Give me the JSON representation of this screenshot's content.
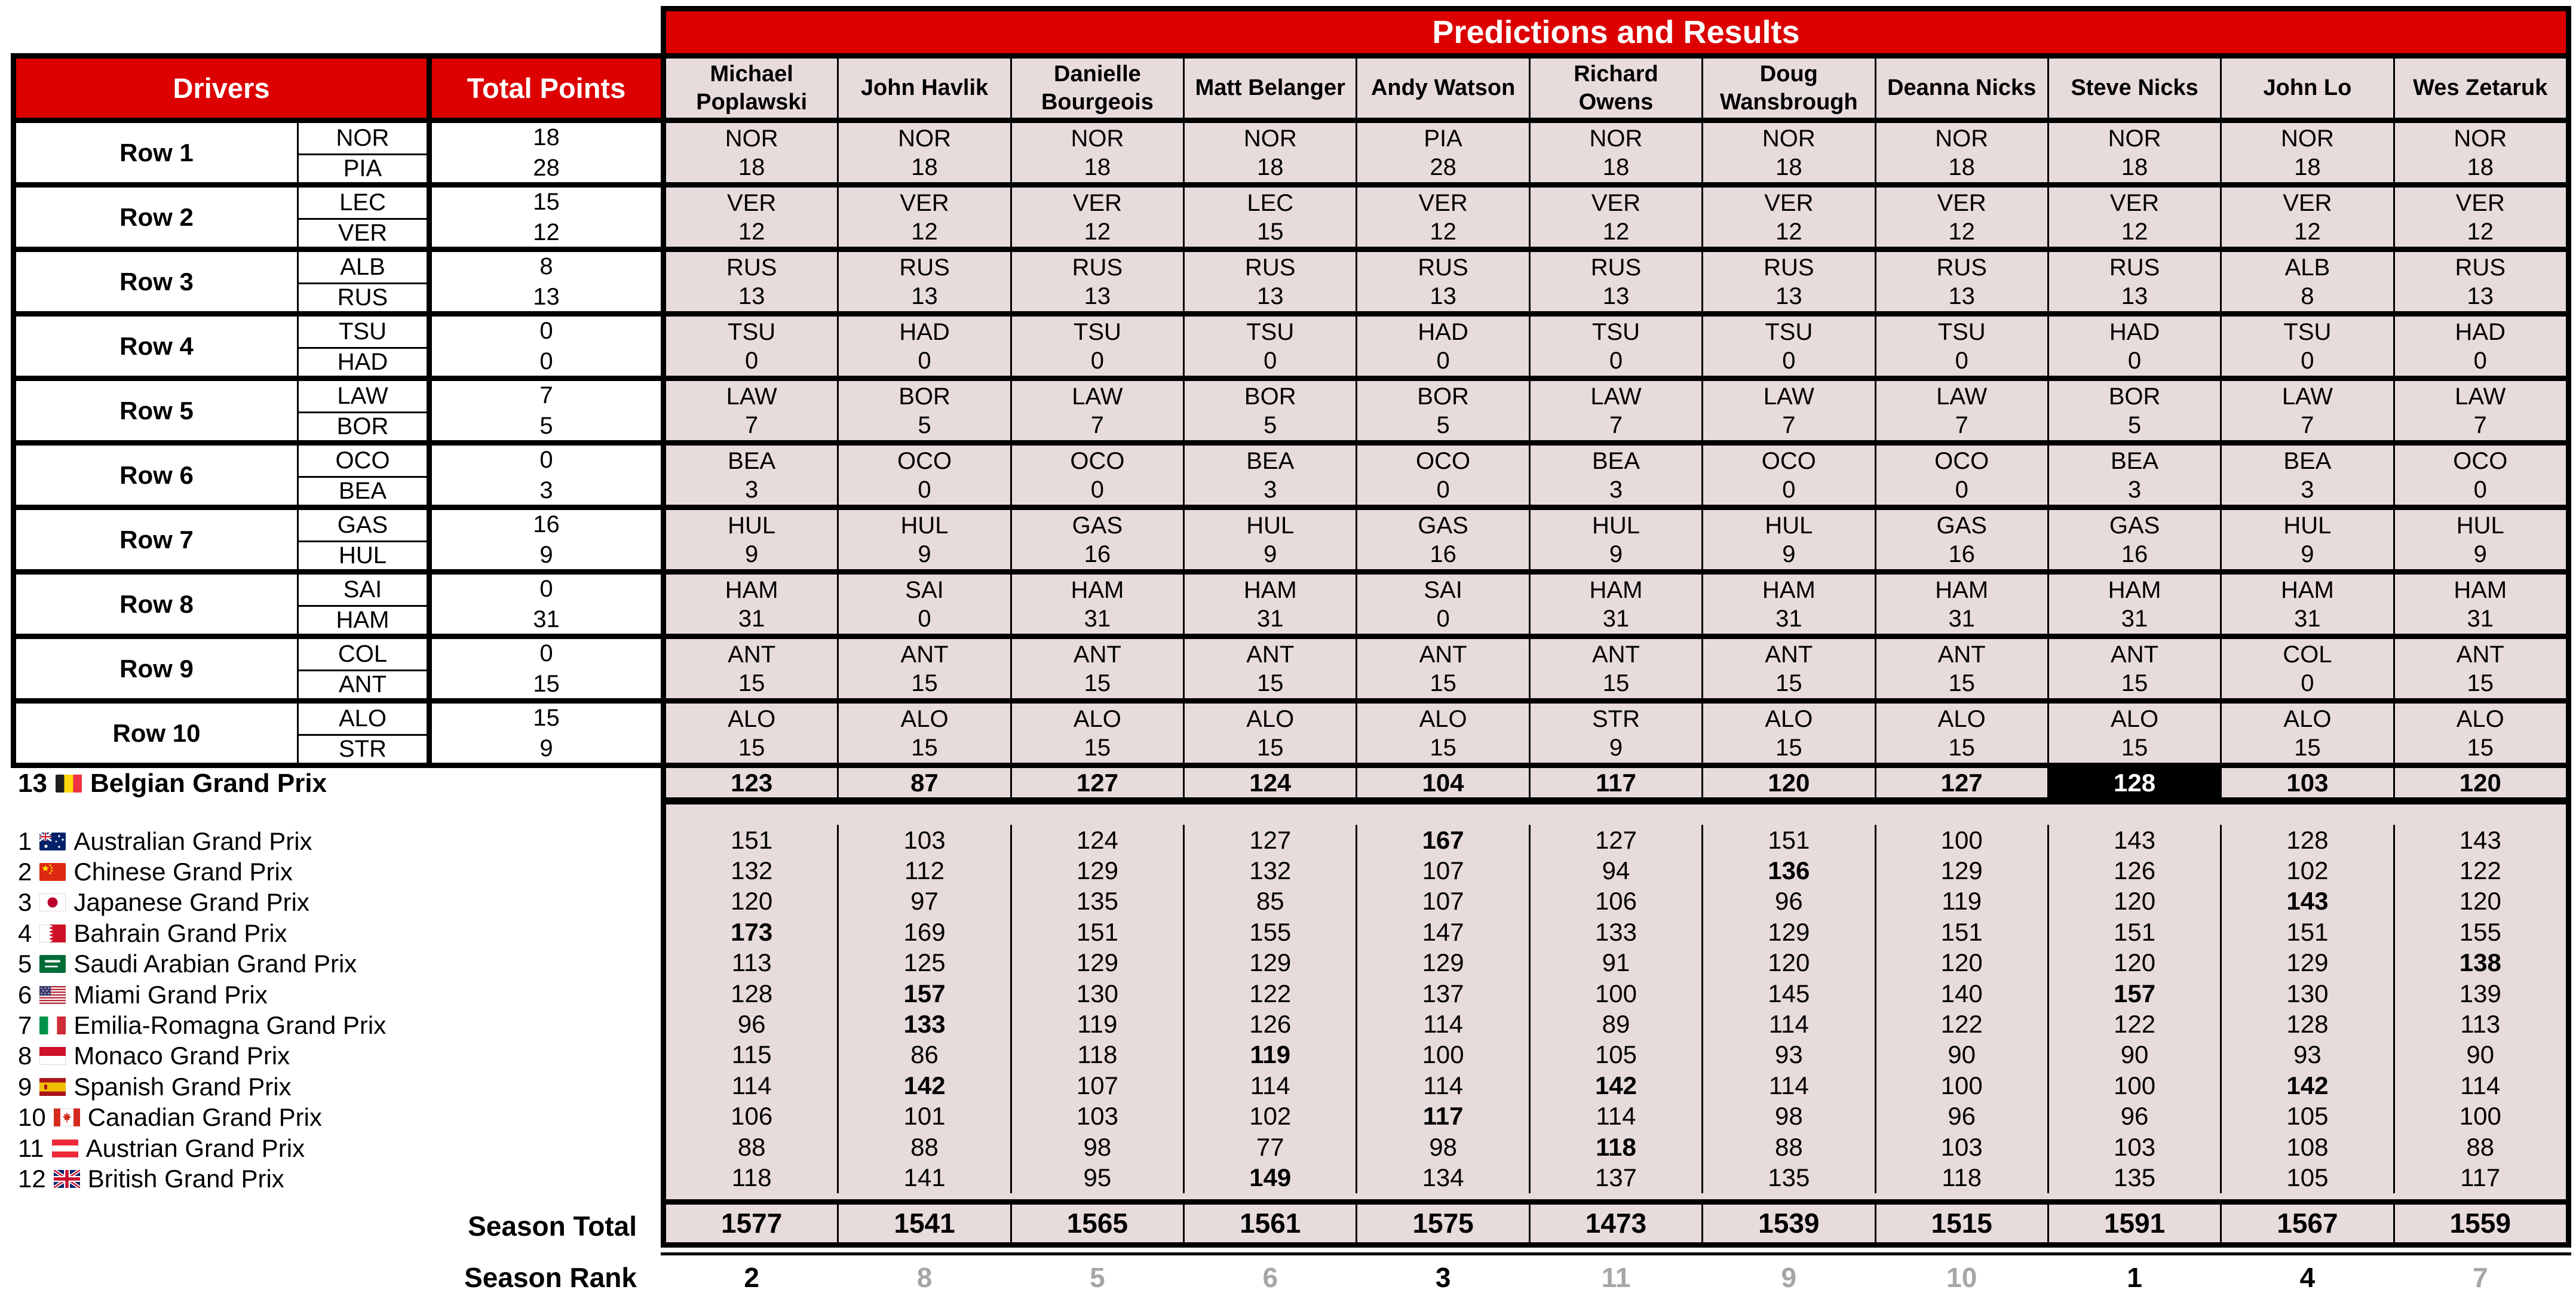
{
  "banner": {
    "title": "Predictions and Results"
  },
  "headers": {
    "drivers": "Drivers",
    "total_points": "Total Points"
  },
  "players": [
    "Michael Poplawski",
    "John Havlik",
    "Danielle Bourgeois",
    "Matt Belanger",
    "Andy Watson",
    "Richard Owens",
    "Doug Wansbrough",
    "Deanna Nicks",
    "Steve Nicks",
    "John Lo",
    "Wes Zetaruk"
  ],
  "driver_rows": [
    {
      "label": "Row 1",
      "drivers": [
        {
          "code": "NOR",
          "points": "18"
        },
        {
          "code": "PIA",
          "points": "28"
        }
      ],
      "picks": [
        [
          "NOR",
          "18"
        ],
        [
          "NOR",
          "18"
        ],
        [
          "NOR",
          "18"
        ],
        [
          "NOR",
          "18"
        ],
        [
          "PIA",
          "28"
        ],
        [
          "NOR",
          "18"
        ],
        [
          "NOR",
          "18"
        ],
        [
          "NOR",
          "18"
        ],
        [
          "NOR",
          "18"
        ],
        [
          "NOR",
          "18"
        ],
        [
          "NOR",
          "18"
        ]
      ]
    },
    {
      "label": "Row 2",
      "drivers": [
        {
          "code": "LEC",
          "points": "15"
        },
        {
          "code": "VER",
          "points": "12"
        }
      ],
      "picks": [
        [
          "VER",
          "12"
        ],
        [
          "VER",
          "12"
        ],
        [
          "VER",
          "12"
        ],
        [
          "LEC",
          "15"
        ],
        [
          "VER",
          "12"
        ],
        [
          "VER",
          "12"
        ],
        [
          "VER",
          "12"
        ],
        [
          "VER",
          "12"
        ],
        [
          "VER",
          "12"
        ],
        [
          "VER",
          "12"
        ],
        [
          "VER",
          "12"
        ]
      ]
    },
    {
      "label": "Row 3",
      "drivers": [
        {
          "code": "ALB",
          "points": "8"
        },
        {
          "code": "RUS",
          "points": "13"
        }
      ],
      "picks": [
        [
          "RUS",
          "13"
        ],
        [
          "RUS",
          "13"
        ],
        [
          "RUS",
          "13"
        ],
        [
          "RUS",
          "13"
        ],
        [
          "RUS",
          "13"
        ],
        [
          "RUS",
          "13"
        ],
        [
          "RUS",
          "13"
        ],
        [
          "RUS",
          "13"
        ],
        [
          "RUS",
          "13"
        ],
        [
          "ALB",
          "8"
        ],
        [
          "RUS",
          "13"
        ]
      ]
    },
    {
      "label": "Row 4",
      "drivers": [
        {
          "code": "TSU",
          "points": "0"
        },
        {
          "code": "HAD",
          "points": "0"
        }
      ],
      "picks": [
        [
          "TSU",
          "0"
        ],
        [
          "HAD",
          "0"
        ],
        [
          "TSU",
          "0"
        ],
        [
          "TSU",
          "0"
        ],
        [
          "HAD",
          "0"
        ],
        [
          "TSU",
          "0"
        ],
        [
          "TSU",
          "0"
        ],
        [
          "TSU",
          "0"
        ],
        [
          "HAD",
          "0"
        ],
        [
          "TSU",
          "0"
        ],
        [
          "HAD",
          "0"
        ]
      ]
    },
    {
      "label": "Row 5",
      "drivers": [
        {
          "code": "LAW",
          "points": "7"
        },
        {
          "code": "BOR",
          "points": "5"
        }
      ],
      "picks": [
        [
          "LAW",
          "7"
        ],
        [
          "BOR",
          "5"
        ],
        [
          "LAW",
          "7"
        ],
        [
          "BOR",
          "5"
        ],
        [
          "BOR",
          "5"
        ],
        [
          "LAW",
          "7"
        ],
        [
          "LAW",
          "7"
        ],
        [
          "LAW",
          "7"
        ],
        [
          "BOR",
          "5"
        ],
        [
          "LAW",
          "7"
        ],
        [
          "LAW",
          "7"
        ]
      ]
    },
    {
      "label": "Row 6",
      "drivers": [
        {
          "code": "OCO",
          "points": "0"
        },
        {
          "code": "BEA",
          "points": "3"
        }
      ],
      "picks": [
        [
          "BEA",
          "3"
        ],
        [
          "OCO",
          "0"
        ],
        [
          "OCO",
          "0"
        ],
        [
          "BEA",
          "3"
        ],
        [
          "OCO",
          "0"
        ],
        [
          "BEA",
          "3"
        ],
        [
          "OCO",
          "0"
        ],
        [
          "OCO",
          "0"
        ],
        [
          "BEA",
          "3"
        ],
        [
          "BEA",
          "3"
        ],
        [
          "OCO",
          "0"
        ]
      ]
    },
    {
      "label": "Row 7",
      "drivers": [
        {
          "code": "GAS",
          "points": "16"
        },
        {
          "code": "HUL",
          "points": "9"
        }
      ],
      "picks": [
        [
          "HUL",
          "9"
        ],
        [
          "HUL",
          "9"
        ],
        [
          "GAS",
          "16"
        ],
        [
          "HUL",
          "9"
        ],
        [
          "GAS",
          "16"
        ],
        [
          "HUL",
          "9"
        ],
        [
          "HUL",
          "9"
        ],
        [
          "GAS",
          "16"
        ],
        [
          "GAS",
          "16"
        ],
        [
          "HUL",
          "9"
        ],
        [
          "HUL",
          "9"
        ]
      ]
    },
    {
      "label": "Row 8",
      "drivers": [
        {
          "code": "SAI",
          "points": "0"
        },
        {
          "code": "HAM",
          "points": "31"
        }
      ],
      "picks": [
        [
          "HAM",
          "31"
        ],
        [
          "SAI",
          "0"
        ],
        [
          "HAM",
          "31"
        ],
        [
          "HAM",
          "31"
        ],
        [
          "SAI",
          "0"
        ],
        [
          "HAM",
          "31"
        ],
        [
          "HAM",
          "31"
        ],
        [
          "HAM",
          "31"
        ],
        [
          "HAM",
          "31"
        ],
        [
          "HAM",
          "31"
        ],
        [
          "HAM",
          "31"
        ]
      ]
    },
    {
      "label": "Row 9",
      "drivers": [
        {
          "code": "COL",
          "points": "0"
        },
        {
          "code": "ANT",
          "points": "15"
        }
      ],
      "picks": [
        [
          "ANT",
          "15"
        ],
        [
          "ANT",
          "15"
        ],
        [
          "ANT",
          "15"
        ],
        [
          "ANT",
          "15"
        ],
        [
          "ANT",
          "15"
        ],
        [
          "ANT",
          "15"
        ],
        [
          "ANT",
          "15"
        ],
        [
          "ANT",
          "15"
        ],
        [
          "ANT",
          "15"
        ],
        [
          "COL",
          "0"
        ],
        [
          "ANT",
          "15"
        ]
      ]
    },
    {
      "label": "Row 10",
      "drivers": [
        {
          "code": "ALO",
          "points": "15"
        },
        {
          "code": "STR",
          "points": "9"
        }
      ],
      "picks": [
        [
          "ALO",
          "15"
        ],
        [
          "ALO",
          "15"
        ],
        [
          "ALO",
          "15"
        ],
        [
          "ALO",
          "15"
        ],
        [
          "ALO",
          "15"
        ],
        [
          "STR",
          "9"
        ],
        [
          "ALO",
          "15"
        ],
        [
          "ALO",
          "15"
        ],
        [
          "ALO",
          "15"
        ],
        [
          "ALO",
          "15"
        ],
        [
          "ALO",
          "15"
        ]
      ]
    }
  ],
  "belgian_row": {
    "number": "13",
    "flag": "be",
    "name": "Belgian Grand Prix",
    "totals": [
      123,
      87,
      127,
      124,
      104,
      117,
      120,
      127,
      128,
      103,
      120
    ],
    "winner_index": 8
  },
  "races": [
    {
      "number": "1",
      "flag": "au",
      "name": "Australian Grand Prix",
      "values": [
        151,
        103,
        124,
        127,
        167,
        127,
        151,
        100,
        143,
        128,
        143
      ],
      "bold": [
        4
      ]
    },
    {
      "number": "2",
      "flag": "cn",
      "name": "Chinese Grand Prix",
      "values": [
        132,
        112,
        129,
        132,
        107,
        94,
        136,
        129,
        126,
        102,
        122
      ],
      "bold": [
        6
      ]
    },
    {
      "number": "3",
      "flag": "jp",
      "name": "Japanese Grand Prix",
      "values": [
        120,
        97,
        135,
        85,
        107,
        106,
        96,
        119,
        120,
        143,
        120
      ],
      "bold": [
        9
      ]
    },
    {
      "number": "4",
      "flag": "bh",
      "name": "Bahrain Grand Prix",
      "values": [
        173,
        169,
        151,
        155,
        147,
        133,
        129,
        151,
        151,
        151,
        155
      ],
      "bold": [
        0
      ]
    },
    {
      "number": "5",
      "flag": "sa",
      "name": "Saudi Arabian Grand Prix",
      "values": [
        113,
        125,
        129,
        129,
        129,
        91,
        120,
        120,
        120,
        129,
        138
      ],
      "bold": [
        10
      ]
    },
    {
      "number": "6",
      "flag": "us",
      "name": "Miami Grand Prix",
      "values": [
        128,
        157,
        130,
        122,
        137,
        100,
        145,
        140,
        157,
        130,
        139
      ],
      "bold": [
        1,
        8
      ]
    },
    {
      "number": "7",
      "flag": "it",
      "name": "Emilia-Romagna Grand Prix",
      "values": [
        96,
        133,
        119,
        126,
        114,
        89,
        114,
        122,
        122,
        128,
        113
      ],
      "bold": [
        1
      ]
    },
    {
      "number": "8",
      "flag": "mc",
      "name": "Monaco Grand Prix",
      "values": [
        115,
        86,
        118,
        119,
        100,
        105,
        93,
        90,
        90,
        93,
        90
      ],
      "bold": [
        3
      ]
    },
    {
      "number": "9",
      "flag": "es",
      "name": "Spanish Grand Prix",
      "values": [
        114,
        142,
        107,
        114,
        114,
        142,
        114,
        100,
        100,
        142,
        114
      ],
      "bold": [
        1,
        5,
        9
      ]
    },
    {
      "number": "10",
      "flag": "ca",
      "name": "Canadian Grand Prix",
      "values": [
        106,
        101,
        103,
        102,
        117,
        114,
        98,
        96,
        96,
        105,
        100
      ],
      "bold": [
        4
      ]
    },
    {
      "number": "11",
      "flag": "at",
      "name": "Austrian Grand Prix",
      "values": [
        88,
        88,
        98,
        77,
        98,
        118,
        88,
        103,
        103,
        108,
        88
      ],
      "bold": [
        5
      ]
    },
    {
      "number": "12",
      "flag": "gb",
      "name": "British Grand Prix",
      "values": [
        118,
        141,
        95,
        149,
        134,
        137,
        135,
        118,
        135,
        105,
        117
      ],
      "bold": [
        3
      ]
    }
  ],
  "season_total": {
    "label": "Season Total",
    "values": [
      1577,
      1541,
      1565,
      1561,
      1575,
      1473,
      1539,
      1515,
      1591,
      1567,
      1559
    ]
  },
  "season_rank": {
    "label": "Season Rank",
    "values": [
      2,
      8,
      5,
      6,
      3,
      11,
      9,
      10,
      1,
      4,
      7
    ],
    "bold_rank_max": 4
  },
  "colors": {
    "red": "#DC0000",
    "cell_pink": "#E8DBDB",
    "rank_gray": "#A6A6A6",
    "highlight_bg": "#000000",
    "highlight_text": "#FFFFFF"
  }
}
